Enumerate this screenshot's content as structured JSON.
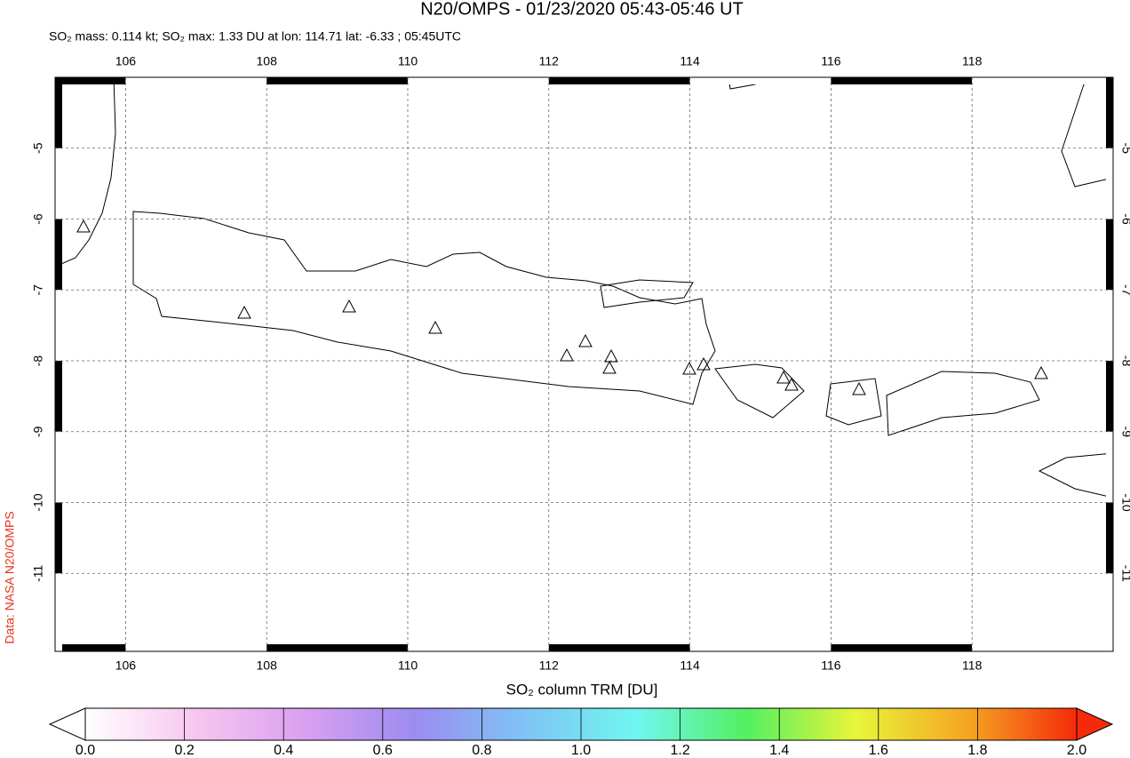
{
  "chart_data": {
    "type": "map",
    "title": "N20/OMPS - 01/23/2020 05:43-05:46 UT",
    "subtitle": "SO₂ mass: 0.114 kt; SO₂ max: 1.33 DU at lon: 114.71 lat: -6.33 ; 05:45UTC",
    "side_label": "Data: NASA N20/OMPS",
    "xlim": [
      105,
      120
    ],
    "ylim": [
      -12.1,
      -4
    ],
    "xticks": [
      106,
      108,
      110,
      112,
      114,
      116,
      118
    ],
    "yticks": [
      -5,
      -6,
      -7,
      -8,
      -9,
      -10,
      -11
    ],
    "grid": true,
    "colorbar": {
      "label": "SO₂ column TRM [DU]",
      "lim": [
        0,
        2
      ],
      "ticks": [
        {
          "value": 0,
          "label": "0.0"
        },
        0.2,
        0.4,
        0.6,
        0.8,
        {
          "value": 1,
          "label": "1.0"
        },
        1.2,
        1.4,
        1.6,
        1.8,
        {
          "value": 2,
          "label": "2.0"
        }
      ],
      "colors": [
        "#ffffff",
        "#f7c6ef",
        "#d9a0f0",
        "#9b8cf0",
        "#7fc4f5",
        "#6ff7f0",
        "#52f060",
        "#e8f53a",
        "#f5a623",
        "#f52a0a"
      ]
    }
  }
}
